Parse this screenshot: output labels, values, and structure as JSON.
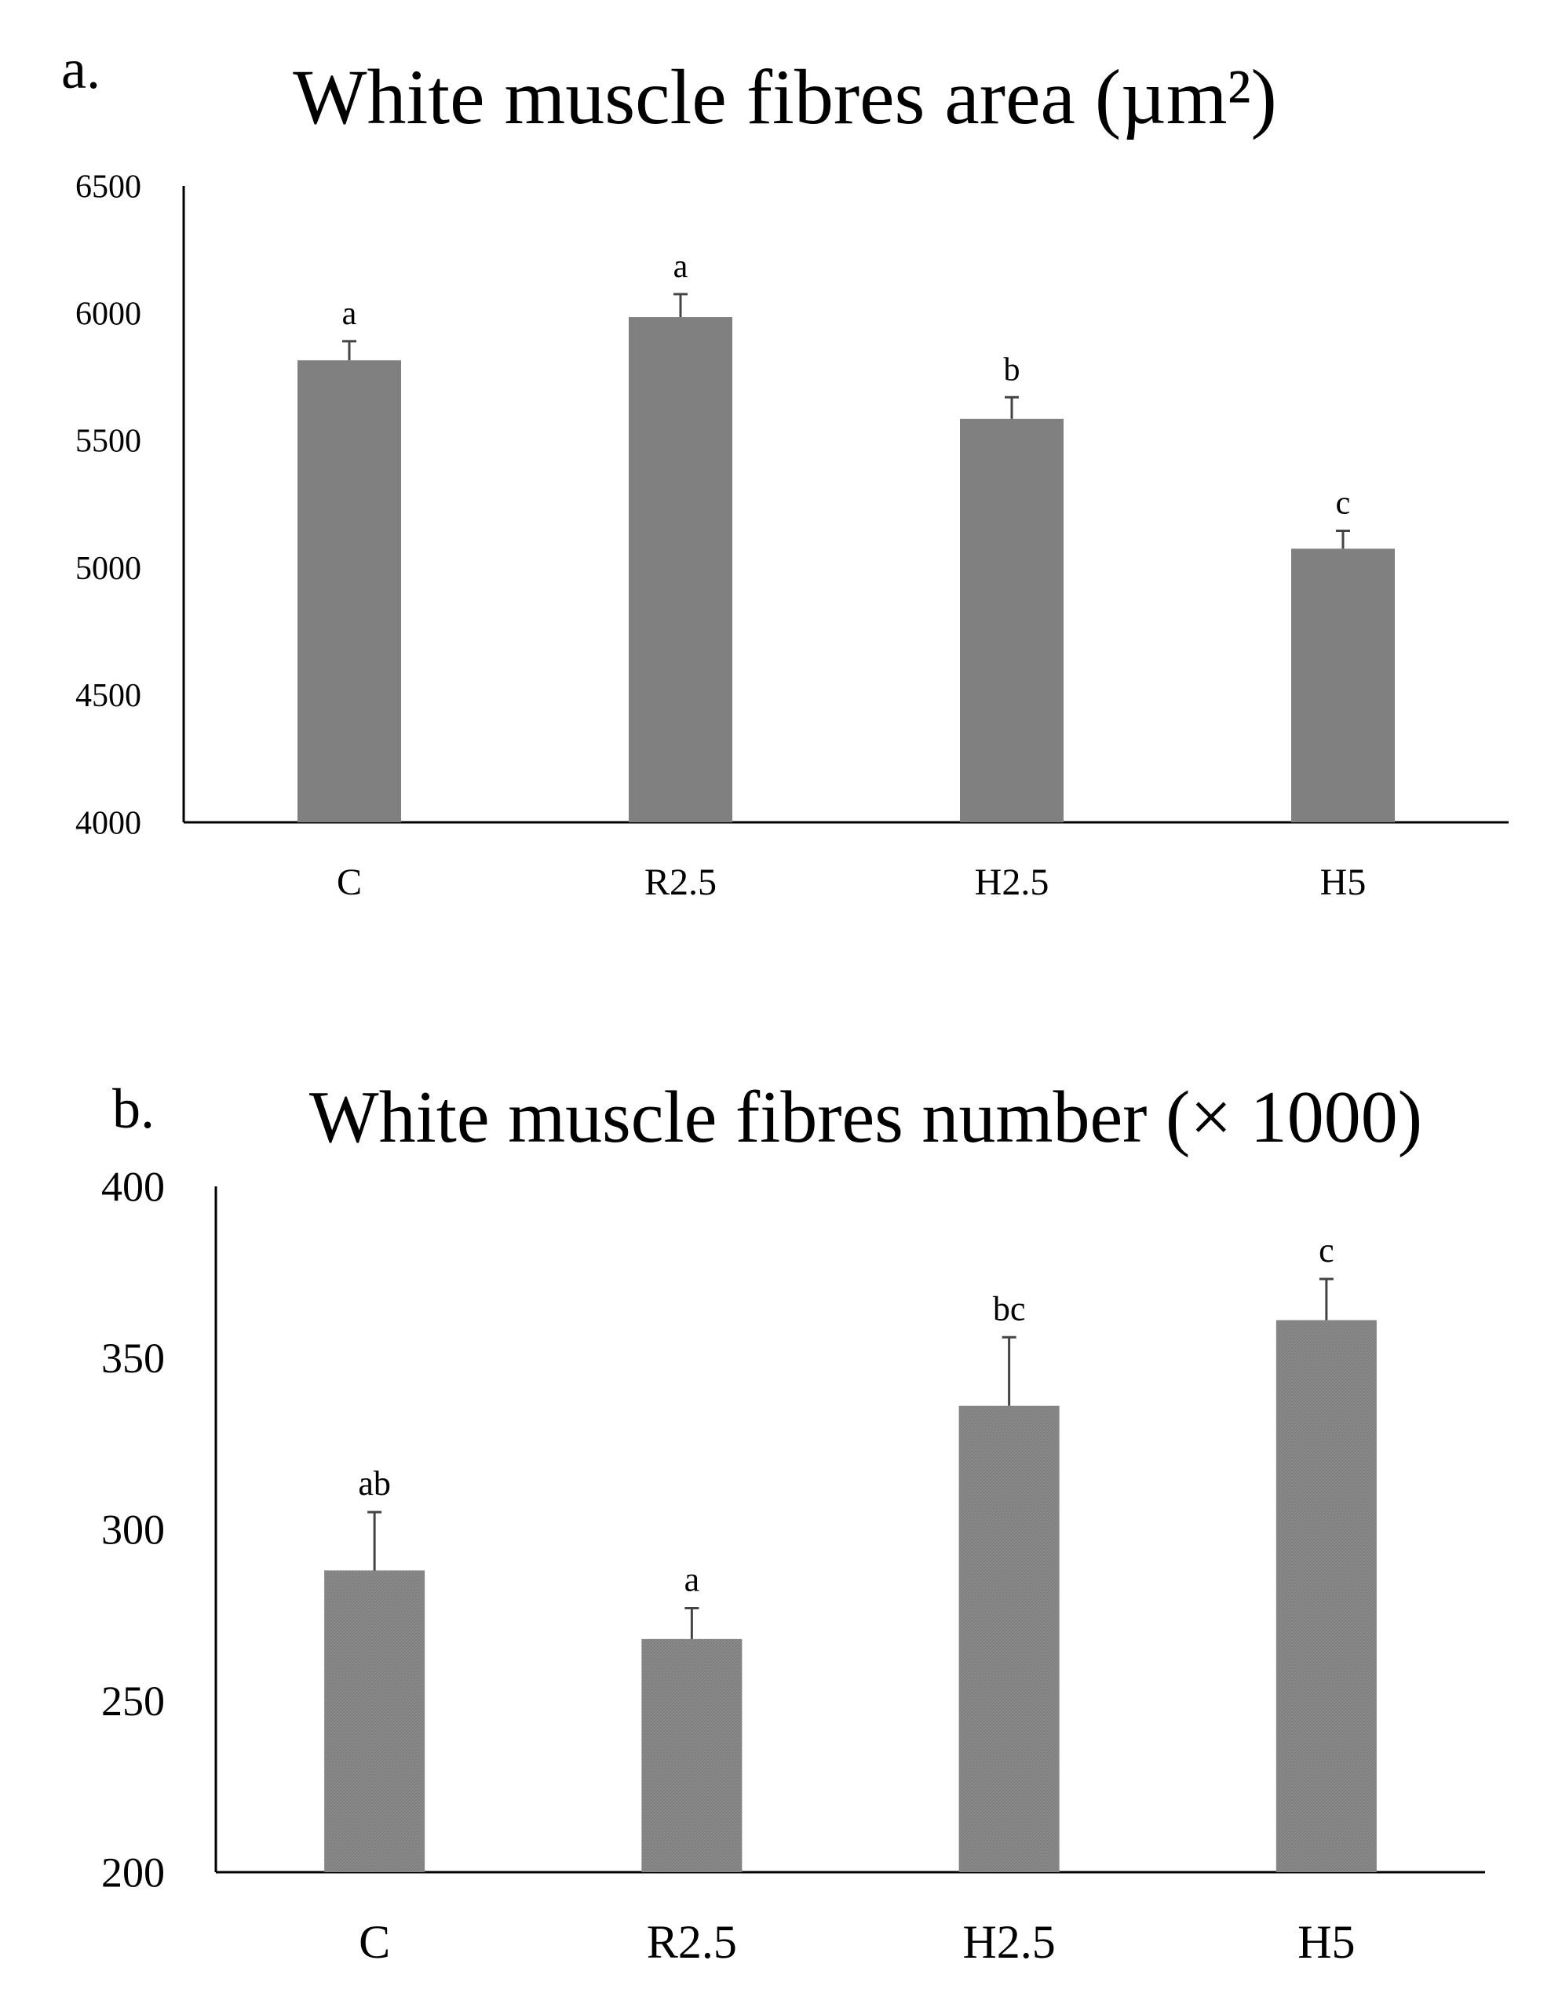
{
  "panels": [
    {
      "letter": "a.",
      "chart_data": {
        "type": "bar",
        "title": "White muscle fibres area (µm²)",
        "categories": [
          "C",
          "R2.5",
          "H2.5",
          "H5"
        ],
        "values": [
          5815,
          5985,
          5585,
          5075
        ],
        "error": [
          75,
          90,
          85,
          70
        ],
        "significance_letters": [
          "a",
          "a",
          "b",
          "c"
        ],
        "ylim": [
          4000,
          6500
        ],
        "yticks": [
          4000,
          4500,
          5000,
          5500,
          6000,
          6500
        ],
        "grid": false,
        "legend": "none",
        "bar_color": "#808080"
      }
    },
    {
      "letter": "b.",
      "chart_data": {
        "type": "bar",
        "title": "White muscle fibres number (× 1000)",
        "categories": [
          "C",
          "R2.5",
          "H2.5",
          "H5"
        ],
        "values": [
          288,
          268,
          336,
          361
        ],
        "error": [
          17,
          9,
          20,
          12
        ],
        "significance_letters": [
          "ab",
          "a",
          "bc",
          "c"
        ],
        "ylim": [
          200,
          400
        ],
        "yticks": [
          200,
          250,
          300,
          350,
          400
        ],
        "grid": false,
        "legend": "none",
        "bar_color": "#868686"
      }
    }
  ]
}
